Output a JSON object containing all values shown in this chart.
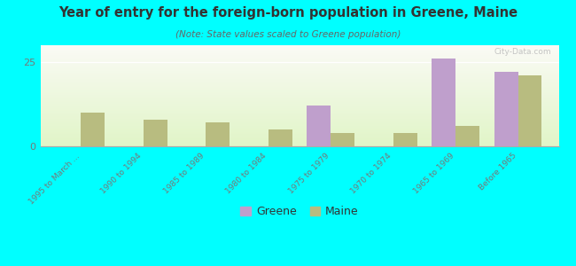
{
  "title": "Year of entry for the foreign-born population in Greene, Maine",
  "subtitle": "(Note: State values scaled to Greene population)",
  "categories": [
    "1995 to March ...",
    "1990 to 1994",
    "1985 to 1989",
    "1980 to 1984",
    "1975 to 1979",
    "1970 to 1974",
    "1965 to 1969",
    "Before 1965"
  ],
  "greene_values": [
    0,
    0,
    0,
    0,
    12,
    0,
    26,
    22
  ],
  "maine_values": [
    10,
    8,
    7,
    5,
    4,
    4,
    6,
    21
  ],
  "greene_color": "#bf9fcc",
  "maine_color": "#b8bc80",
  "background_color": "#00ffff",
  "ylim": [
    0,
    30
  ],
  "yticks": [
    0,
    25
  ],
  "bar_width": 0.38,
  "watermark": "City-Data.com",
  "watermark_color": "#bbbbbb",
  "title_color": "#333333",
  "subtitle_color": "#666666",
  "tick_color": "#777777",
  "grid_line_color": "#dddddd",
  "spine_color": "#aaaaaa"
}
